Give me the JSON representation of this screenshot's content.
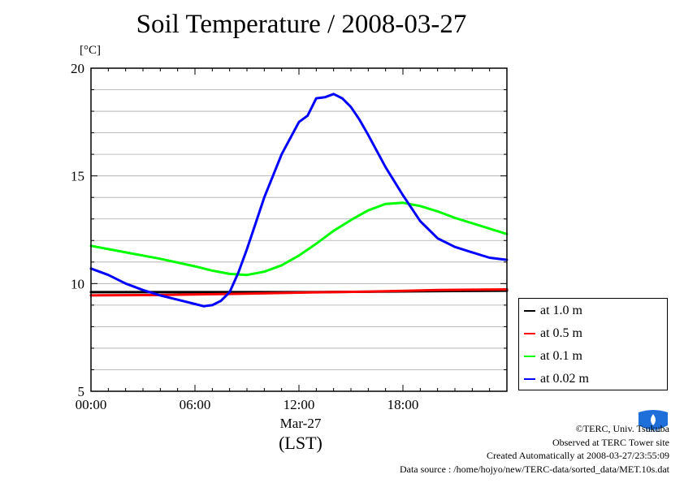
{
  "title": "Soil Temperature / 2008-03-27",
  "unit_label": "[°C]",
  "date_label": "Mar-27",
  "lst_label": "(LST)",
  "footer": {
    "copyright": "©TERC, Univ. Tsukuba",
    "observed": "Observed at TERC Tower site",
    "created": "Created Automatically at 2008-03-27/23:55:09",
    "source": "Data source : /home/hojyo/new/TERC-data/sorted_data/MET.10s.dat"
  },
  "logo_text": "TERC",
  "chart_data": {
    "type": "line",
    "title": "Soil Temperature / 2008-03-27",
    "ylabel": "[°C]",
    "xlabel": "(LST)",
    "xlim": [
      0,
      24
    ],
    "ylim": [
      5,
      20
    ],
    "x_ticks": [
      "00:00",
      "06:00",
      "12:00",
      "18:00"
    ],
    "y_ticks": [
      "5",
      "10",
      "15",
      "20"
    ],
    "grid": true,
    "legend_position": "right-bottom",
    "series": [
      {
        "name": "at 1.0 m",
        "color": "#000000",
        "x": [
          0,
          4,
          8,
          12,
          16,
          20,
          24
        ],
        "y": [
          9.6,
          9.6,
          9.6,
          9.6,
          9.62,
          9.65,
          9.67
        ]
      },
      {
        "name": "at 0.5 m",
        "color": "#ff0000",
        "x": [
          0,
          4,
          8,
          12,
          16,
          20,
          24
        ],
        "y": [
          9.45,
          9.47,
          9.52,
          9.58,
          9.63,
          9.7,
          9.73
        ]
      },
      {
        "name": "at 0.1 m",
        "color": "#00ff00",
        "x": [
          0,
          2,
          4,
          6,
          7,
          8,
          9,
          10,
          11,
          12,
          13,
          14,
          15,
          16,
          17,
          18,
          19,
          20,
          21,
          22,
          23,
          24
        ],
        "y": [
          11.75,
          11.45,
          11.15,
          10.8,
          10.6,
          10.45,
          10.4,
          10.55,
          10.85,
          11.3,
          11.85,
          12.45,
          12.95,
          13.4,
          13.7,
          13.75,
          13.6,
          13.35,
          13.05,
          12.8,
          12.55,
          12.3
        ]
      },
      {
        "name": "at 0.02 m",
        "color": "#0000ff",
        "x": [
          0,
          1,
          2,
          3,
          4,
          5,
          6,
          6.5,
          7,
          7.5,
          8,
          8.5,
          9,
          9.5,
          10,
          11,
          12,
          12.5,
          13,
          13.5,
          14,
          14.5,
          15,
          15.5,
          16,
          17,
          18,
          19,
          20,
          21,
          22,
          23,
          24
        ],
        "y": [
          10.7,
          10.4,
          10.0,
          9.7,
          9.45,
          9.25,
          9.05,
          8.95,
          9.0,
          9.2,
          9.6,
          10.5,
          11.6,
          12.8,
          14.0,
          16.0,
          17.5,
          17.8,
          18.6,
          18.65,
          18.8,
          18.6,
          18.2,
          17.6,
          16.9,
          15.4,
          14.1,
          12.9,
          12.1,
          11.7,
          11.45,
          11.2,
          11.1
        ]
      }
    ]
  }
}
